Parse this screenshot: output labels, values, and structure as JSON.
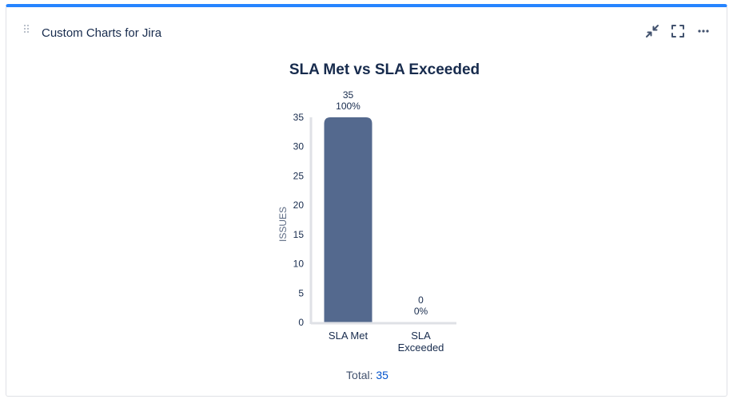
{
  "gadget": {
    "title": "Custom Charts for Jira",
    "actions": [
      {
        "name": "minimize",
        "icon": "minimize-icon"
      },
      {
        "name": "fullscreen",
        "icon": "fullscreen-icon"
      },
      {
        "name": "more",
        "icon": "more-icon"
      }
    ]
  },
  "chart_data": {
    "type": "bar",
    "title": "SLA Met vs SLA Exceeded",
    "ylabel": "ISSUES",
    "xlabel": "",
    "categories": [
      [
        "SLA Met"
      ],
      [
        "SLA",
        "Exceeded"
      ]
    ],
    "values": [
      35,
      0
    ],
    "percent_labels": [
      "100%",
      "0%"
    ],
    "value_labels": [
      "35",
      "0"
    ],
    "ylim": [
      0,
      35
    ],
    "yticks": [
      0,
      5,
      10,
      15,
      20,
      25,
      30,
      35
    ],
    "grid": false,
    "legend": "none",
    "colors": {
      "bar": "#54698e",
      "axis": "#dfe1e6"
    }
  },
  "footer": {
    "total_label": "Total:",
    "total_value": "35"
  }
}
